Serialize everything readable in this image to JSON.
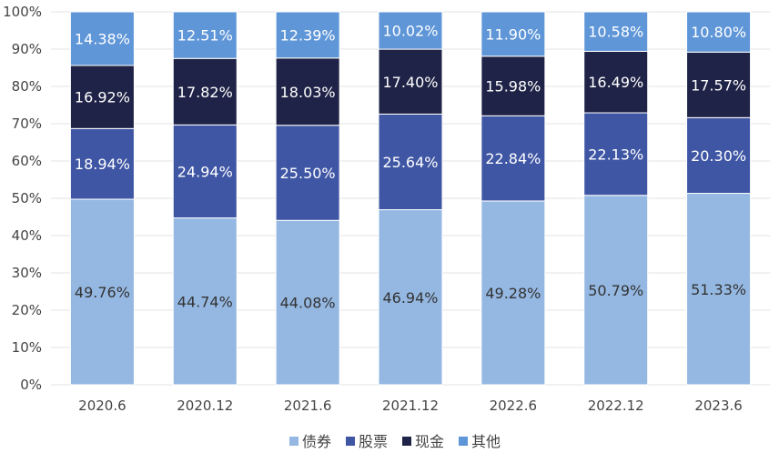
{
  "chart_data": {
    "type": "bar",
    "stacked": true,
    "percent": true,
    "categories": [
      "2020.6",
      "2020.12",
      "2021.6",
      "2021.12",
      "2022.6",
      "2022.12",
      "2023.6"
    ],
    "series": [
      {
        "name": "债券",
        "color": "#95b8e2",
        "label_color": "#333333",
        "values": [
          49.76,
          44.74,
          44.08,
          46.94,
          49.28,
          50.79,
          51.33
        ],
        "labels": [
          "49.76%",
          "44.74%",
          "44.08%",
          "46.94%",
          "49.28%",
          "50.79%",
          "51.33%"
        ]
      },
      {
        "name": "股票",
        "color": "#3f56a4",
        "label_color": "#ffffff",
        "values": [
          18.94,
          24.94,
          25.5,
          25.64,
          22.84,
          22.13,
          20.3
        ],
        "labels": [
          "18.94%",
          "24.94%",
          "25.50%",
          "25.64%",
          "22.84%",
          "22.13%",
          "20.30%"
        ]
      },
      {
        "name": "现金",
        "color": "#1f2347",
        "label_color": "#ffffff",
        "values": [
          16.92,
          17.82,
          18.03,
          17.4,
          15.98,
          16.49,
          17.57
        ],
        "labels": [
          "16.92%",
          "17.82%",
          "18.03%",
          "17.40%",
          "15.98%",
          "16.49%",
          "17.57%"
        ]
      },
      {
        "name": "其他",
        "color": "#5f96d8",
        "label_color": "#ffffff",
        "values": [
          14.38,
          12.51,
          12.39,
          10.02,
          11.9,
          10.58,
          10.8
        ],
        "labels": [
          "14.38%",
          "12.51%",
          "12.39%",
          "10.02%",
          "11.90%",
          "10.58%",
          "10.80%"
        ]
      }
    ],
    "y_ticks": [
      "0%",
      "10%",
      "20%",
      "30%",
      "40%",
      "50%",
      "60%",
      "70%",
      "80%",
      "90%",
      "100%"
    ],
    "ylim": [
      0,
      100
    ],
    "grid": true,
    "legend_position": "bottom",
    "title": "",
    "xlabel": "",
    "ylabel": ""
  }
}
